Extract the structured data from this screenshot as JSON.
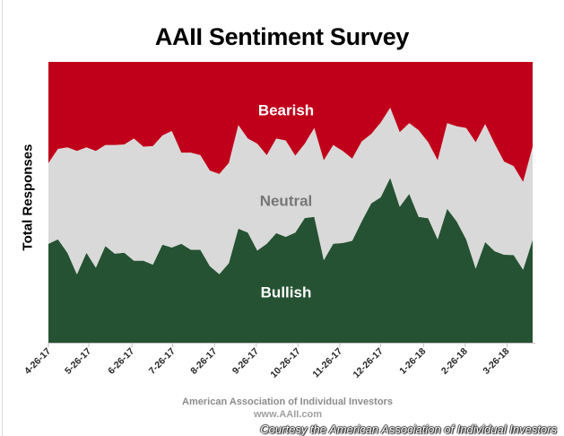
{
  "chart_data": {
    "type": "area",
    "stacking": "percent",
    "title": "AAII Sentiment Survey",
    "xlabel": "",
    "ylabel": "Total Responses",
    "ylim": [
      0,
      100
    ],
    "grid": false,
    "legend": "inline-labels",
    "x_ticks": [
      {
        "label": "4-26-17",
        "week_index": 0
      },
      {
        "label": "5-26-17",
        "week_index": 4.25
      },
      {
        "label": "6-26-17",
        "week_index": 8.8
      },
      {
        "label": "7-26-17",
        "week_index": 13.1
      },
      {
        "label": "8-26-17",
        "week_index": 17.5
      },
      {
        "label": "9-26-17",
        "week_index": 21.9
      },
      {
        "label": "10-26-17",
        "week_index": 26.3
      },
      {
        "label": "11-26-17",
        "week_index": 30.7
      },
      {
        "label": "12-26-17",
        "week_index": 35.0
      },
      {
        "label": "1-26-18",
        "week_index": 39.5
      },
      {
        "label": "2-26-18",
        "week_index": 43.9
      },
      {
        "label": "3-26-18",
        "week_index": 48.3
      }
    ],
    "series": [
      {
        "name": "Bullish",
        "color": "#255232",
        "label_color": "#ffffff",
        "values": [
          35.2,
          36.8,
          32.0,
          24.3,
          32.0,
          26.7,
          34.4,
          31.7,
          32.0,
          29.2,
          29.2,
          27.8,
          34.9,
          33.9,
          35.2,
          33.1,
          33.1,
          27.3,
          24.4,
          28.3,
          40.6,
          39.2,
          32.8,
          35.2,
          39.0,
          37.7,
          39.2,
          44.4,
          44.8,
          29.4,
          35.2,
          35.5,
          36.3,
          43.2,
          49.6,
          51.8,
          58.7,
          48.4,
          53.0,
          44.8,
          44.3,
          36.8,
          47.7,
          43.2,
          36.8,
          26.4,
          35.8,
          32.6,
          31.3,
          31.2,
          26.0,
          36.6
        ]
      },
      {
        "name": "Neutral",
        "color": "#d9d9d9",
        "label_color": "#767676",
        "values": [
          28.8,
          32.2,
          37.6,
          44.0,
          37.6,
          41.6,
          36.0,
          38.7,
          38.6,
          43.5,
          40.6,
          42.2,
          38.9,
          41.5,
          32.5,
          34.6,
          33.7,
          34.0,
          35.7,
          35.7,
          36.9,
          33.5,
          38.1,
          31.6,
          33.7,
          34.3,
          27.4,
          26.5,
          31.7,
          35.6,
          35.2,
          32.8,
          29.3,
          28.5,
          24.7,
          26.6,
          25.0,
          26.6,
          25.2,
          30.9,
          27.1,
          28.2,
          30.5,
          33.9,
          39.7,
          45.0,
          42.1,
          38.3,
          33.2,
          31.7,
          31.3,
          33.2
        ]
      },
      {
        "name": "Bearish",
        "color": "#c0001a",
        "label_color": "#ffffff",
        "values": [
          36.0,
          31.0,
          30.4,
          31.7,
          30.4,
          31.7,
          29.6,
          29.6,
          29.4,
          27.3,
          30.2,
          30.0,
          26.2,
          24.6,
          32.3,
          32.3,
          33.2,
          38.7,
          39.9,
          36.0,
          22.5,
          27.3,
          29.1,
          33.2,
          27.3,
          28.0,
          33.4,
          29.1,
          23.5,
          35.0,
          29.6,
          31.7,
          34.4,
          28.3,
          25.7,
          21.6,
          16.3,
          25.0,
          21.8,
          24.3,
          28.6,
          35.0,
          21.8,
          22.9,
          23.5,
          28.6,
          22.1,
          29.1,
          35.5,
          37.1,
          42.7,
          30.2
        ]
      }
    ]
  },
  "footer": {
    "source": "American Association of Individual Investors",
    "website": "www.AAII.com",
    "courtesy": "Courtesy the American Association of Individual Investors"
  }
}
